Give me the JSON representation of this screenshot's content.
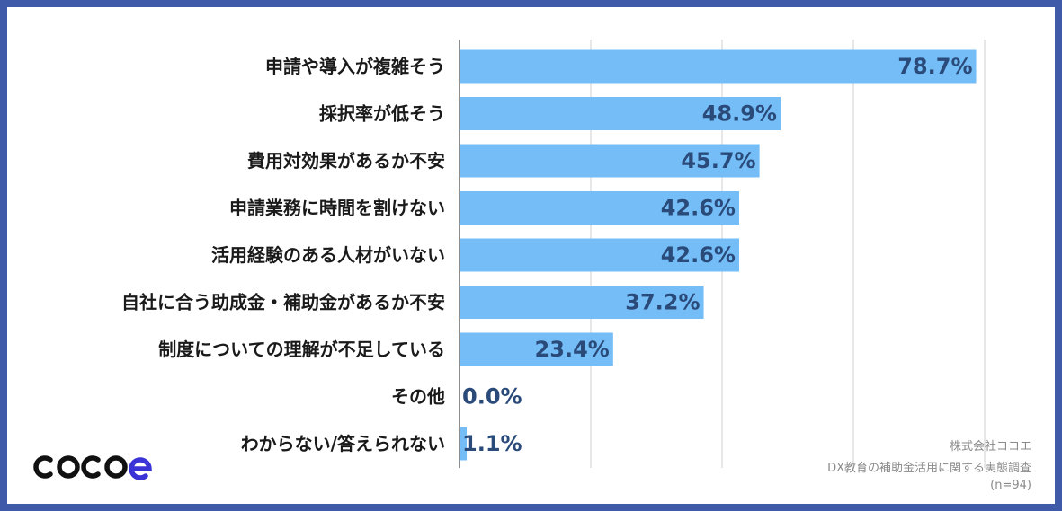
{
  "chart_data": {
    "type": "bar",
    "orientation": "horizontal",
    "categories": [
      "申請や導入が複雑そう",
      "採択率が低そう",
      "費用対効果があるか不安",
      "申請業務に時間を割けない",
      "活用経験のある人材がいない",
      "自社に合う助成金・補助金があるか不安",
      "制度についての理解が不足している",
      "その他",
      "わからない/答えられない"
    ],
    "values": [
      78.7,
      48.9,
      45.7,
      42.6,
      42.6,
      37.2,
      23.4,
      0.0,
      1.1
    ],
    "value_labels": [
      "78.7%",
      "48.9%",
      "45.7%",
      "42.6%",
      "42.6%",
      "37.2%",
      "23.4%",
      "0.0%",
      "1.1%"
    ],
    "xlim": [
      0,
      80
    ],
    "grid": true,
    "bar_color": "#74bdf7",
    "value_label_color": "#2a4a7a"
  },
  "source": {
    "company": "株式会社ココエ",
    "survey": "DX教育の補助金活用に関する実態調査",
    "sample": "(n=94)"
  },
  "logo_icon": "cocoe-logo",
  "colors": {
    "frame": "#3f5aa8",
    "background": "#ffffff"
  }
}
